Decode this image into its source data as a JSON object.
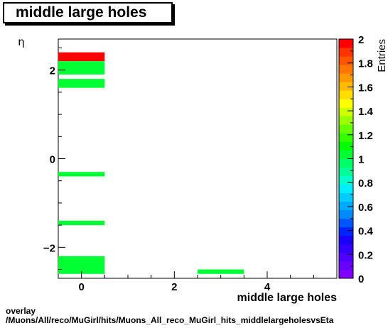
{
  "chart_data": {
    "type": "heatmap",
    "title": "middle large holes",
    "xlabel": "middle large holes",
    "ylabel": "η",
    "zlabel": "Entries",
    "xlim": [
      -0.5,
      5.5
    ],
    "ylim": [
      -2.7,
      2.7
    ],
    "zlim": [
      0,
      2
    ],
    "x_ticks": [
      0,
      2,
      4
    ],
    "x_tick_labels": [
      "0",
      "2",
      "4"
    ],
    "y_ticks": [
      -2,
      0,
      2
    ],
    "y_tick_labels": [
      "−2",
      "0",
      "2"
    ],
    "z_ticks": [
      0,
      0.2,
      0.4,
      0.6,
      0.8,
      1,
      1.2,
      1.4,
      1.6,
      1.8,
      2
    ],
    "z_tick_labels": [
      "0",
      "0.2",
      "0.4",
      "0.6",
      "0.8",
      "1",
      "1.2",
      "1.4",
      "1.6",
      "1.8",
      "2"
    ],
    "bins": [
      {
        "x": [
          -0.5,
          0.5
        ],
        "y": [
          2.2,
          2.4
        ],
        "value": 2
      },
      {
        "x": [
          -0.5,
          0.5
        ],
        "y": [
          1.9,
          2.2
        ],
        "value": 1
      },
      {
        "x": [
          -0.5,
          0.5
        ],
        "y": [
          1.6,
          1.8
        ],
        "value": 1
      },
      {
        "x": [
          -0.5,
          0.5
        ],
        "y": [
          -0.4,
          -0.3
        ],
        "value": 1
      },
      {
        "x": [
          -0.5,
          0.5
        ],
        "y": [
          -1.5,
          -1.4
        ],
        "value": 1
      },
      {
        "x": [
          -0.5,
          0.5
        ],
        "y": [
          -2.6,
          -2.2
        ],
        "value": 1
      },
      {
        "x": [
          2.5,
          3.5
        ],
        "y": [
          -2.6,
          -2.5
        ],
        "value": 1
      }
    ],
    "palette": [
      "#7f00ff",
      "#6a00ff",
      "#4f00ff",
      "#3300ff",
      "#1a00ff",
      "#0022ff",
      "#0055ff",
      "#0088ff",
      "#00aaff",
      "#00ccff",
      "#00eeff",
      "#00ffcc",
      "#00ff99",
      "#00ff66",
      "#00ff33",
      "#00ff00",
      "#33ff00",
      "#66ff00",
      "#99ff00",
      "#ccff00",
      "#ffff00",
      "#ffdd00",
      "#ffbb00",
      "#ff9900",
      "#ff7700",
      "#ff5500",
      "#ff3300",
      "#ff0000"
    ]
  },
  "footer": {
    "line1": "overlay",
    "line2": "/Muons/All/reco/MuGirl/hits/Muons_All_reco_MuGirl_hits_middlelargeholesvsEta"
  }
}
